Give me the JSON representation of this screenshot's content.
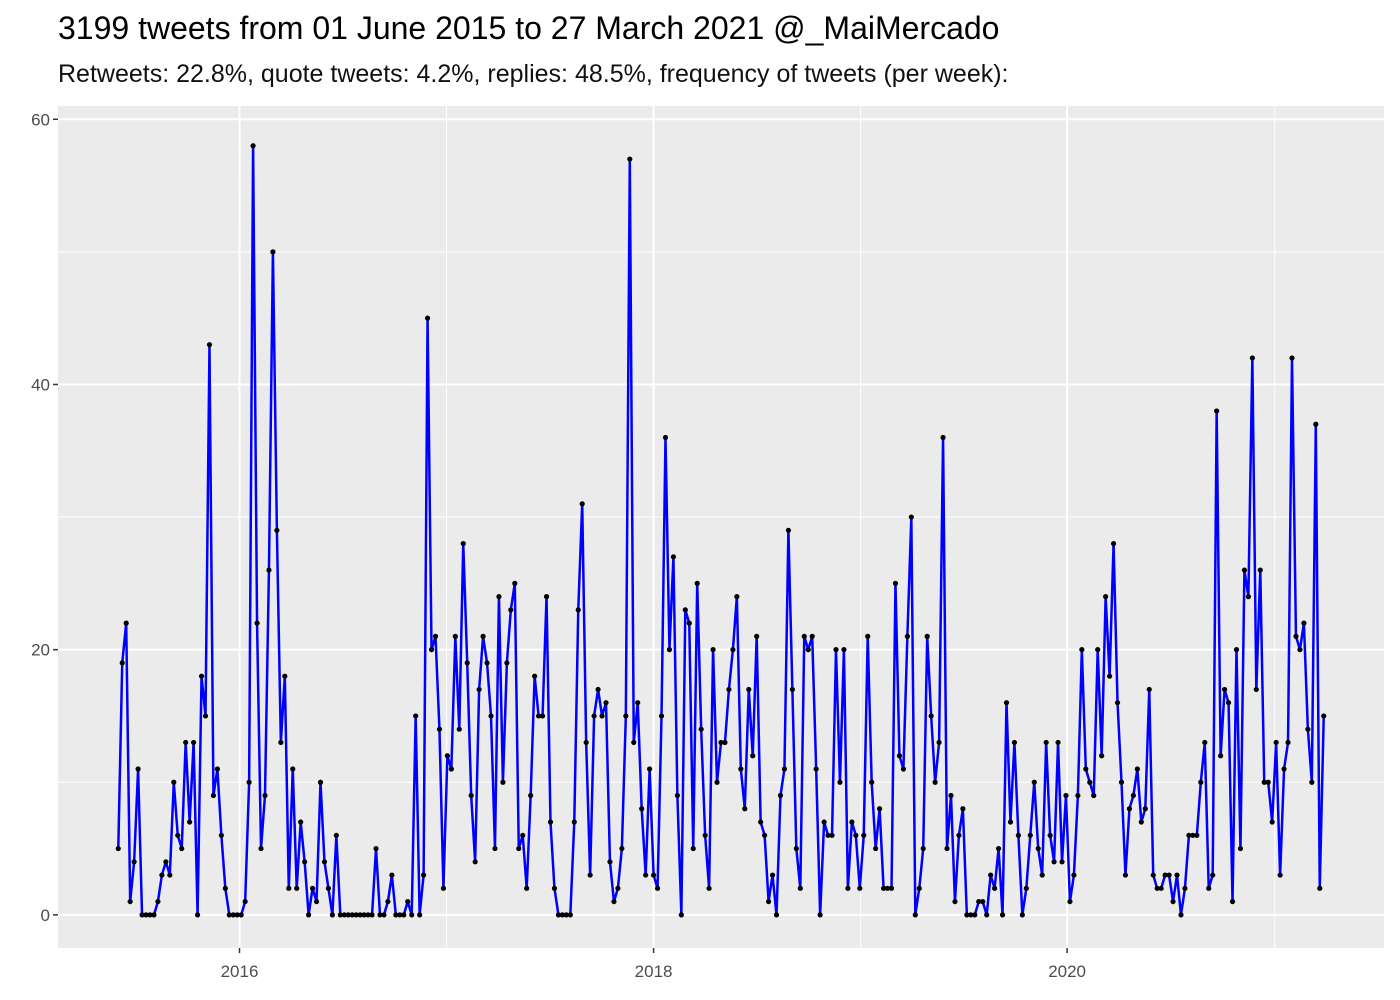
{
  "chart_data": {
    "type": "line",
    "title": "3199 tweets from 01 June 2015 to 27 March 2021 @_MaiMercado",
    "subtitle": "Retweets: 22.8%, quote tweets: 4.2%, replies: 48.5%, frequency of tweets (per week):",
    "xlabel": "",
    "ylabel": "",
    "x_start": "2015-06-01",
    "x_end": "2021-03-27",
    "x_ticks": [
      "2016-01-01",
      "2018-01-01",
      "2020-01-01"
    ],
    "x_tick_labels": [
      "2016",
      "2018",
      "2020"
    ],
    "ylim": [
      -2.5,
      61
    ],
    "y_ticks": [
      0,
      20,
      40,
      60
    ],
    "grid": true,
    "legend": "none",
    "line_color": "#0000ff",
    "point_color": "#000000",
    "panel_color": "#ebebeb",
    "grid_color": "#ffffff",
    "series": [
      {
        "values": [
          5,
          19,
          22,
          1,
          4,
          11,
          0,
          0,
          0,
          0,
          1,
          3,
          4,
          3,
          10,
          6,
          5,
          13,
          7,
          13,
          0,
          18,
          15,
          43,
          9,
          11,
          6,
          2,
          0,
          0,
          0,
          0,
          1,
          10,
          58,
          22,
          5,
          9,
          26,
          50,
          29,
          13,
          18,
          2,
          11,
          2,
          7,
          4,
          0,
          2,
          1,
          10,
          4,
          2,
          0,
          6,
          0,
          0,
          0,
          0,
          0,
          0,
          0,
          0,
          0,
          5,
          0,
          0,
          1,
          3,
          0,
          0,
          0,
          1,
          0,
          15,
          0,
          3,
          45,
          20,
          21,
          14,
          2,
          12,
          11,
          21,
          14,
          28,
          19,
          9,
          4,
          17,
          21,
          19,
          15,
          5,
          24,
          10,
          19,
          23,
          25,
          5,
          6,
          2,
          9,
          18,
          15,
          15,
          24,
          7,
          2,
          0,
          0,
          0,
          0,
          7,
          23,
          31,
          13,
          3,
          15,
          17,
          15,
          16,
          4,
          1,
          2,
          5,
          15,
          57,
          13,
          16,
          8,
          3,
          11,
          3,
          2,
          15,
          36,
          20,
          27,
          9,
          0,
          23,
          22,
          5,
          25,
          14,
          6,
          2,
          20,
          10,
          13,
          13,
          17,
          20,
          24,
          11,
          8,
          17,
          12,
          21,
          7,
          6,
          1,
          3,
          0,
          9,
          11,
          29,
          17,
          5,
          2,
          21,
          20,
          21,
          11,
          0,
          7,
          6,
          6,
          20,
          10,
          20,
          2,
          7,
          6,
          2,
          6,
          21,
          10,
          5,
          8,
          2,
          2,
          2,
          25,
          12,
          11,
          21,
          30,
          0,
          2,
          5,
          21,
          15,
          10,
          13,
          36,
          5,
          9,
          1,
          6,
          8,
          0,
          0,
          0,
          1,
          1,
          0,
          3,
          2,
          5,
          0,
          16,
          7,
          13,
          6,
          0,
          2,
          6,
          10,
          5,
          3,
          13,
          6,
          4,
          13,
          4,
          9,
          1,
          3,
          9,
          20,
          11,
          10,
          9,
          20,
          12,
          24,
          18,
          28,
          16,
          10,
          3,
          8,
          9,
          11,
          7,
          8,
          17,
          3,
          2,
          2,
          3,
          3,
          1,
          3,
          0,
          2,
          6,
          6,
          6,
          10,
          13,
          2,
          3,
          38,
          12,
          17,
          16,
          1,
          20,
          5,
          26,
          24,
          42,
          17,
          26,
          10,
          10,
          7,
          13,
          3,
          11,
          13,
          42,
          21,
          20,
          22,
          14,
          10,
          37,
          2,
          15
        ]
      }
    ]
  }
}
